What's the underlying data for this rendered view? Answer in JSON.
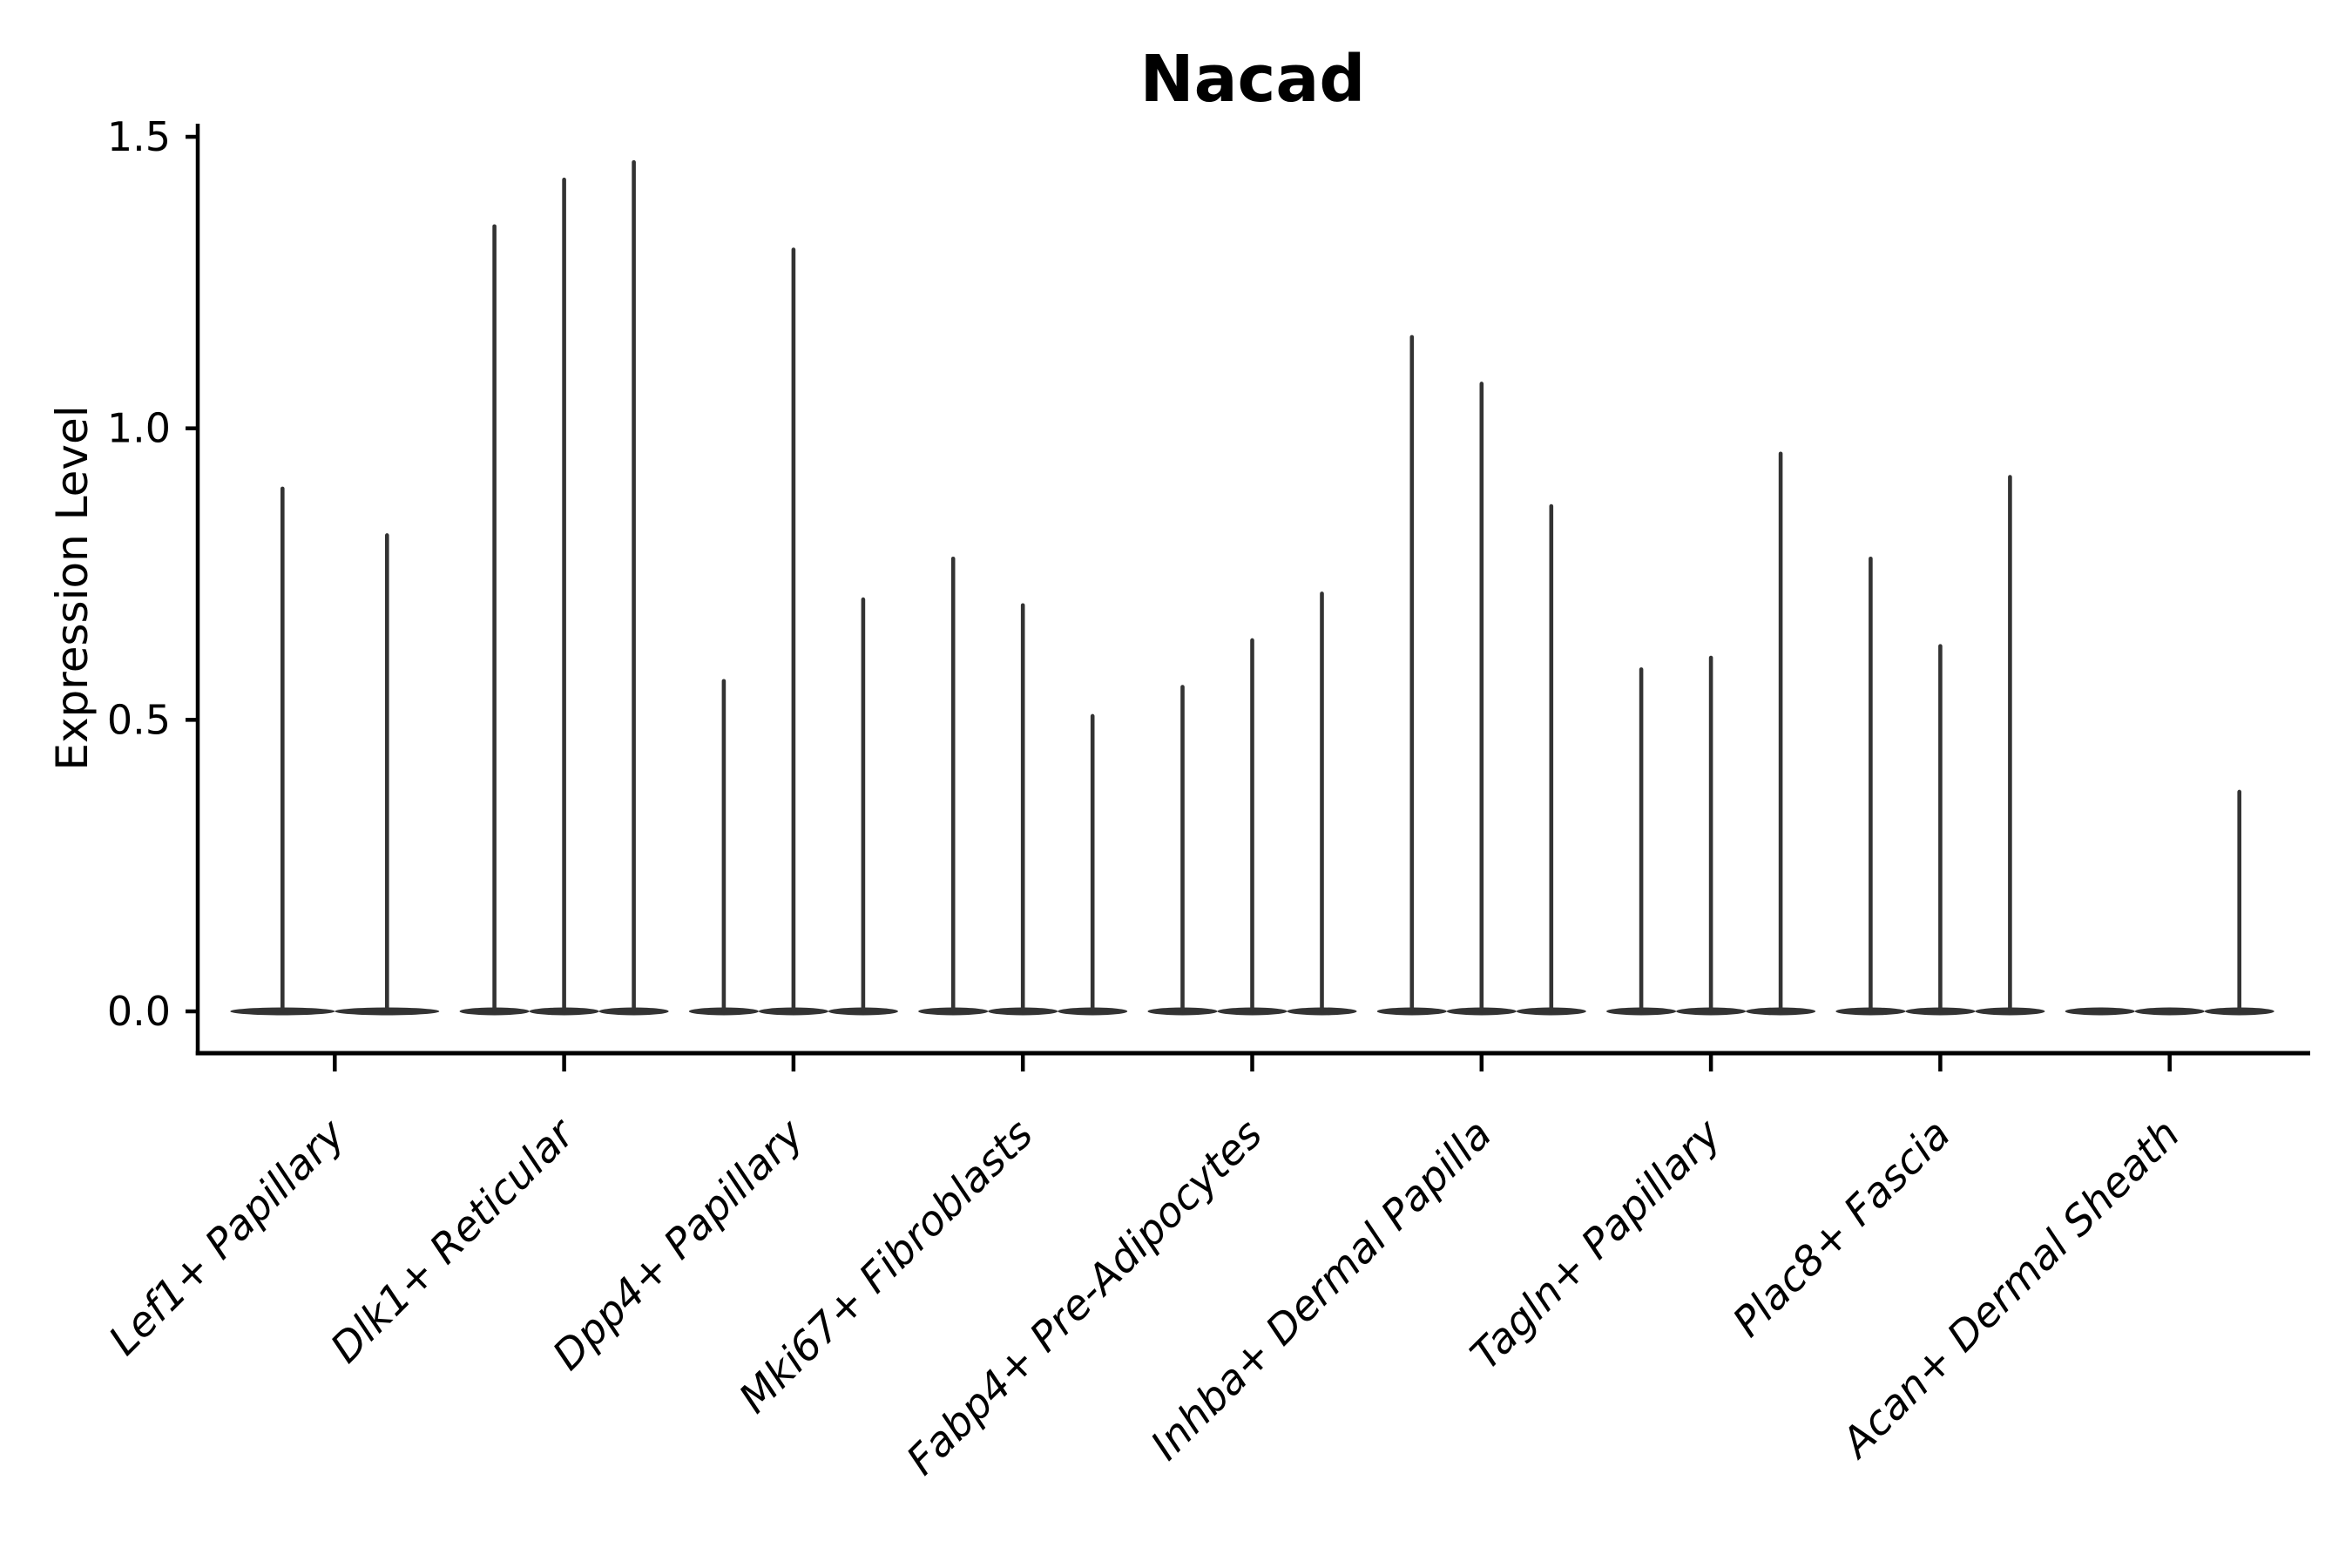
{
  "title": "Nacad",
  "y_axis": {
    "label": "Expression Level",
    "ticks": [
      {
        "label": "0.0",
        "value": 0.0
      },
      {
        "label": "0.5",
        "value": 0.5
      },
      {
        "label": "1.0",
        "value": 1.0
      },
      {
        "label": "1.5",
        "value": 1.5
      }
    ]
  },
  "x_axis": {
    "categories": [
      "Lef1+ Papillary",
      "Dlk1+ Reticular",
      "Dpp4+ Papillary",
      "Mki67+ Fibroblasts",
      "Fabp4+ Pre-Adipocytes",
      "Inhba+ Dermal Papilla",
      "Tagln+ Papillary",
      "Plac8+ Fascia",
      "Acan+ Dermal Sheath"
    ]
  },
  "colors": {
    "violin": "#333333",
    "axis": "#000000",
    "background": "#ffffff"
  },
  "chart_data": {
    "type": "violin",
    "title": "Nacad",
    "xlabel": "",
    "ylabel": "Expression Level",
    "ylim": [
      -0.07,
      1.52
    ],
    "yticks": [
      0.0,
      0.5,
      1.0,
      1.5
    ],
    "grid": false,
    "legend": false,
    "categories": [
      "Lef1+ Papillary",
      "Dlk1+ Reticular",
      "Dpp4+ Papillary",
      "Mki67+ Fibroblasts",
      "Fabp4+ Pre-Adipocytes",
      "Inhba+ Dermal Papilla",
      "Tagln+ Papillary",
      "Plac8+ Fascia",
      "Acan+ Dermal Sheath"
    ],
    "series": [
      {
        "category": "Lef1+ Papillary",
        "violin_max_values": [
          0.9,
          0.82
        ]
      },
      {
        "category": "Dlk1+ Reticular",
        "violin_max_values": [
          1.35,
          1.43,
          1.46
        ]
      },
      {
        "category": "Dpp4+ Papillary",
        "violin_max_values": [
          0.57,
          1.31,
          0.71
        ]
      },
      {
        "category": "Mki67+ Fibroblasts",
        "violin_max_values": [
          0.78,
          0.7,
          0.51
        ]
      },
      {
        "category": "Fabp4+ Pre-Adipocytes",
        "violin_max_values": [
          0.56,
          0.64,
          0.72
        ]
      },
      {
        "category": "Inhba+ Dermal Papilla",
        "violin_max_values": [
          1.16,
          1.08,
          0.87
        ]
      },
      {
        "category": "Tagln+ Papillary",
        "violin_max_values": [
          0.59,
          0.61,
          0.96
        ]
      },
      {
        "category": "Plac8+ Fascia",
        "violin_max_values": [
          0.78,
          0.63,
          0.92
        ]
      },
      {
        "category": "Acan+ Dermal Sheath",
        "violin_max_values": [
          0.0,
          0.0,
          0.38
        ]
      }
    ]
  }
}
